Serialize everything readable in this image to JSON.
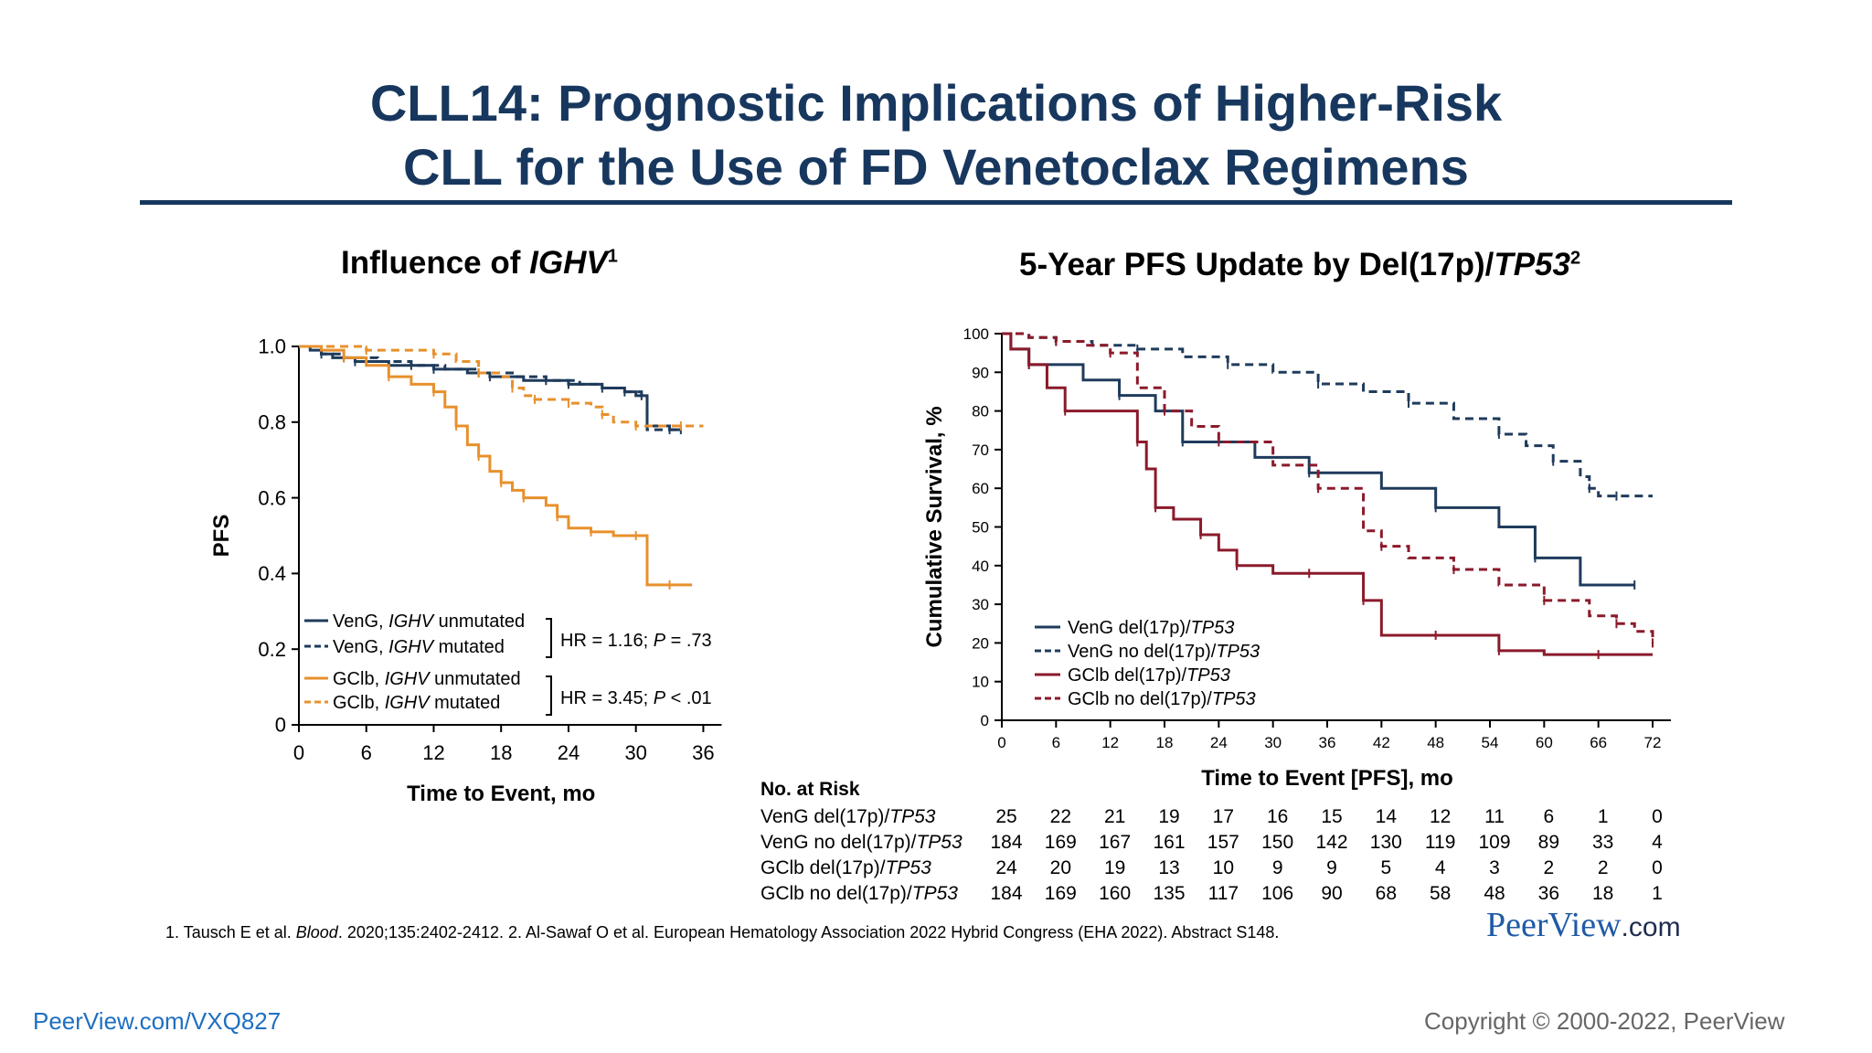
{
  "slide": {
    "title_line1": "CLL14: Prognostic Implications of Higher-Risk",
    "title_line2": "CLL for the Use of FD Venetoclax Regimens",
    "left_subtitle": {
      "text": "Influence of ",
      "italic": "IGHV",
      "sup": "1"
    },
    "right_subtitle": {
      "text": "5-Year PFS Update by Del(17p)/",
      "italic": "TP53",
      "sup": "2"
    },
    "footnote": {
      "a": "1. Tausch E et al. ",
      "a_italic": "Blood",
      "b": ". 2020;135:2402-2412. 2. Al-Sawaf O et al. European Hematology Association 2022 Hybrid Congress (EHA 2022). Abstract S148."
    },
    "brand": {
      "main": "PeerView",
      "suffix": ".com"
    },
    "link": "PeerView.com/VXQ827",
    "copyright": "Copyright © 2000-2022, PeerView"
  },
  "chart_data": [
    {
      "type": "line",
      "ylabel": "PFS",
      "xlabel": "Time to Event, mo",
      "xlim": [
        0,
        38
      ],
      "ylim": [
        0,
        1.0
      ],
      "x_ticks": [
        0,
        6,
        12,
        18,
        24,
        30,
        36
      ],
      "y_ticks": [
        0,
        0.2,
        0.4,
        0.6,
        0.8,
        1.0
      ],
      "y_tick_labels": [
        "0",
        "0.2",
        "0.4",
        "0.6",
        "0.8",
        "1.0"
      ],
      "series": [
        {
          "name": "VenG, IGHV unmutated",
          "name_plain": "VenG, ",
          "name_italic": "IGHV",
          "name_tail": " unmutated",
          "color": "#1f3b5c",
          "dash": false,
          "x": [
            0,
            1,
            2,
            3,
            5,
            8,
            12,
            15,
            17,
            20,
            24,
            27,
            29,
            30,
            31,
            33,
            34
          ],
          "y": [
            1.0,
            0.99,
            0.98,
            0.97,
            0.96,
            0.95,
            0.94,
            0.93,
            0.92,
            0.91,
            0.9,
            0.89,
            0.88,
            0.87,
            0.79,
            0.78,
            0.78
          ]
        },
        {
          "name": "VenG, IGHV mutated",
          "name_plain": "VenG, ",
          "name_italic": "IGHV",
          "name_tail": " mutated",
          "color": "#1f3b5c",
          "dash": true,
          "x": [
            0,
            2,
            4,
            7,
            10,
            13,
            16,
            19,
            22,
            25,
            27,
            29,
            30.5,
            31,
            33,
            34
          ],
          "y": [
            1.0,
            0.98,
            0.97,
            0.96,
            0.95,
            0.94,
            0.93,
            0.92,
            0.91,
            0.9,
            0.89,
            0.88,
            0.87,
            0.78,
            0.78,
            0.78
          ]
        },
        {
          "name": "GClb, IGHV unmutated",
          "name_plain": "GClb, ",
          "name_italic": "IGHV",
          "name_tail": " unmutated",
          "color": "#e8902c",
          "dash": false,
          "x": [
            0,
            2,
            4,
            6,
            8,
            10,
            12,
            13,
            14,
            15,
            16,
            17,
            18,
            19,
            20,
            22,
            23,
            24,
            26,
            28,
            30,
            31,
            33,
            35
          ],
          "y": [
            1.0,
            0.99,
            0.97,
            0.95,
            0.92,
            0.9,
            0.88,
            0.84,
            0.79,
            0.74,
            0.71,
            0.67,
            0.64,
            0.62,
            0.6,
            0.58,
            0.55,
            0.52,
            0.51,
            0.5,
            0.5,
            0.37,
            0.37,
            0.37
          ]
        },
        {
          "name": "GClb, IGHV mutated",
          "name_plain": "GClb, ",
          "name_italic": "IGHV",
          "name_tail": " mutated",
          "color": "#e8902c",
          "dash": true,
          "x": [
            0,
            3,
            6,
            9,
            12,
            14,
            16,
            18,
            19,
            20,
            21,
            22,
            24,
            26,
            27,
            28,
            30,
            32,
            34,
            36
          ],
          "y": [
            1.0,
            1.0,
            0.99,
            0.99,
            0.98,
            0.96,
            0.93,
            0.92,
            0.89,
            0.87,
            0.86,
            0.86,
            0.85,
            0.84,
            0.82,
            0.8,
            0.79,
            0.79,
            0.79,
            0.79
          ]
        }
      ],
      "annotations": [
        {
          "text": "HR = 1.16; ",
          "italic": "P",
          "tail": " = .73"
        },
        {
          "text": "HR = 3.45; ",
          "italic": "P",
          "tail": " < .01"
        }
      ]
    },
    {
      "type": "line",
      "ylabel": "Cumulative Survival, %",
      "xlabel": "Time to Event [PFS], mo",
      "xlim": [
        0,
        72
      ],
      "ylim": [
        0,
        100
      ],
      "x_ticks": [
        0,
        6,
        12,
        18,
        24,
        30,
        36,
        42,
        48,
        54,
        60,
        66,
        72
      ],
      "y_ticks": [
        0,
        10,
        20,
        30,
        40,
        50,
        60,
        70,
        80,
        90,
        100
      ],
      "series": [
        {
          "name": "VenG del(17p)/TP53",
          "name_plain": "VenG del(17p)/",
          "name_italic": "TP53",
          "color": "#1f3b5c",
          "dash": false,
          "x": [
            0,
            1,
            3,
            9,
            13,
            17,
            20,
            28,
            34,
            42,
            48,
            55,
            59,
            64,
            70
          ],
          "y": [
            100,
            96,
            92,
            88,
            84,
            80,
            72,
            68,
            64,
            60,
            55,
            50,
            42,
            35,
            35
          ]
        },
        {
          "name": "VenG no del(17p)/TP53",
          "name_plain": "VenG no del(17p)/",
          "name_italic": "TP53",
          "color": "#1f3b5c",
          "dash": true,
          "x": [
            0,
            3,
            6,
            10,
            15,
            20,
            25,
            30,
            35,
            40,
            45,
            50,
            55,
            58,
            61,
            64,
            65,
            66,
            68,
            72
          ],
          "y": [
            100,
            99,
            98,
            97,
            96,
            94,
            92,
            90,
            87,
            85,
            82,
            78,
            74,
            71,
            67,
            63,
            60,
            58,
            58,
            58
          ]
        },
        {
          "name": "GClb del(17p)/TP53",
          "name_plain": "GClb del(17p)/",
          "name_italic": "TP53",
          "color": "#8b1a2b",
          "dash": false,
          "x": [
            0,
            1,
            3,
            5,
            7,
            14,
            15,
            16,
            17,
            19,
            22,
            24,
            26,
            30,
            34,
            38,
            40,
            42,
            48,
            51,
            55,
            60,
            66,
            72
          ],
          "y": [
            100,
            96,
            92,
            86,
            80,
            80,
            72,
            65,
            55,
            52,
            48,
            44,
            40,
            38,
            38,
            38,
            31,
            22,
            22,
            22,
            18,
            17,
            17,
            17
          ]
        },
        {
          "name": "GClb no del(17p)/TP53",
          "name_plain": "GClb no del(17p)/",
          "name_italic": "TP53",
          "color": "#8b1a2b",
          "dash": true,
          "x": [
            0,
            3,
            6,
            9,
            12,
            15,
            18,
            21,
            24,
            30,
            35,
            40,
            42,
            45,
            50,
            55,
            60,
            65,
            68,
            70,
            72
          ],
          "y": [
            100,
            99,
            98,
            97,
            95,
            86,
            80,
            76,
            72,
            66,
            60,
            49,
            45,
            42,
            39,
            35,
            31,
            27,
            25,
            23,
            20
          ]
        }
      ],
      "risk_table": {
        "header": "No. at Risk",
        "rows": [
          {
            "plain": "VenG del(17p)/",
            "italic": "TP53",
            "values": [
              "25",
              "22",
              "21",
              "19",
              "17",
              "16",
              "15",
              "14",
              "12",
              "11",
              "6",
              "1",
              "0"
            ]
          },
          {
            "plain": "VenG no del(17p)/",
            "italic": "TP53",
            "values": [
              "184",
              "169",
              "167",
              "161",
              "157",
              "150",
              "142",
              "130",
              "119",
              "109",
              "89",
              "33",
              "4"
            ]
          },
          {
            "plain": "GClb del(17p)/",
            "italic": "TP53",
            "values": [
              "24",
              "20",
              "19",
              "13",
              "10",
              "9",
              "9",
              "5",
              "4",
              "3",
              "2",
              "2",
              "0"
            ]
          },
          {
            "plain": "GClb no del(17p)/",
            "italic": "TP53",
            "values": [
              "184",
              "169",
              "160",
              "135",
              "117",
              "106",
              "90",
              "68",
              "58",
              "48",
              "36",
              "18",
              "1"
            ]
          }
        ]
      }
    }
  ]
}
